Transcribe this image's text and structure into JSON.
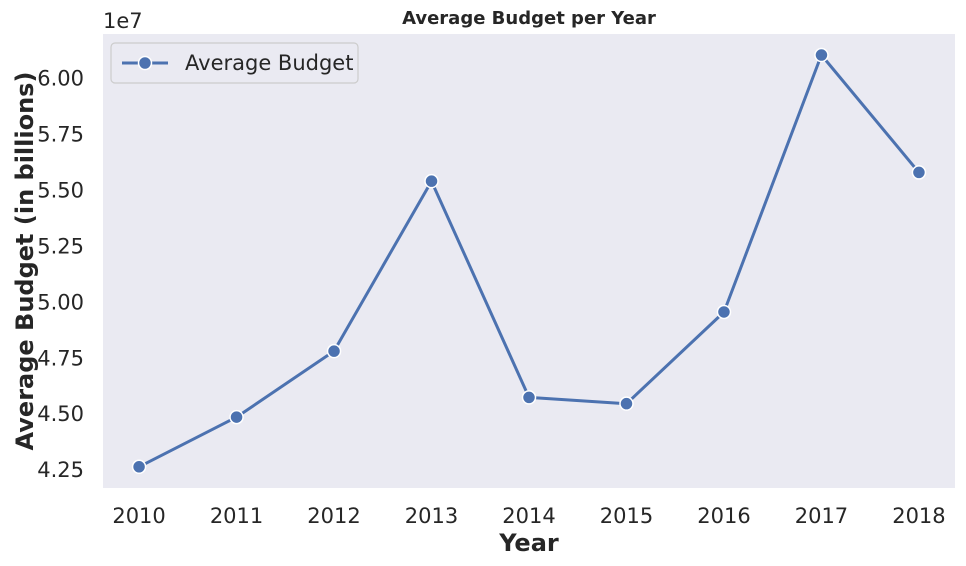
{
  "chart_data": {
    "type": "line",
    "title": "Average Budget per Year",
    "xlabel": "Year",
    "ylabel": "Average Budget (in billions)",
    "y_offset_label": "1e7",
    "y_multiplier": 10000000,
    "categories": [
      "2010",
      "2011",
      "2012",
      "2013",
      "2014",
      "2015",
      "2016",
      "2017",
      "2018"
    ],
    "series": [
      {
        "name": "Average Budget",
        "color": "#4c72b0",
        "values": [
          42650000,
          44870000,
          47820000,
          55420000,
          45750000,
          45470000,
          49570000,
          61060000,
          55810000
        ]
      }
    ],
    "yticks": [
      "4.25",
      "4.50",
      "4.75",
      "5.00",
      "5.25",
      "5.50",
      "5.75",
      "6.00"
    ],
    "ylim": [
      41700000,
      62000000
    ],
    "grid": false,
    "legend_position": "top-left",
    "background": "#eaeaf2"
  }
}
